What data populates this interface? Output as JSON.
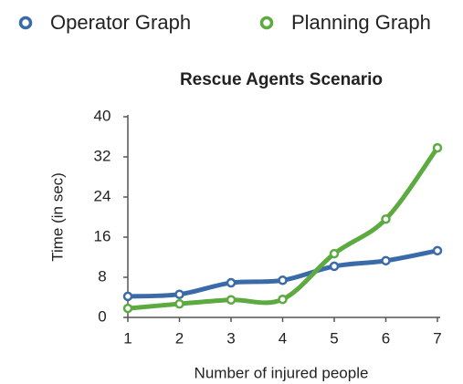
{
  "chart_data": {
    "type": "line",
    "title": "Rescue Agents Scenario",
    "xlabel": "Number of injured people",
    "ylabel": "Time (in sec)",
    "x": [
      1,
      2,
      3,
      4,
      5,
      6,
      7
    ],
    "series": [
      {
        "name": "Operator Graph",
        "color": "#3b6aa8",
        "values": [
          4.2,
          4.6,
          6.9,
          7.4,
          10.2,
          11.3,
          13.3
        ]
      },
      {
        "name": "Planning Graph",
        "color": "#5caa40",
        "values": [
          1.8,
          2.7,
          3.5,
          3.6,
          12.7,
          19.6,
          33.8
        ]
      }
    ],
    "xlim": [
      1,
      7
    ],
    "xticks": [
      1,
      2,
      3,
      4,
      5,
      6,
      7
    ],
    "ylim": [
      0,
      40
    ],
    "yticks": [
      0,
      8,
      16,
      24,
      32,
      40
    ],
    "grid": false,
    "legend": "top"
  }
}
